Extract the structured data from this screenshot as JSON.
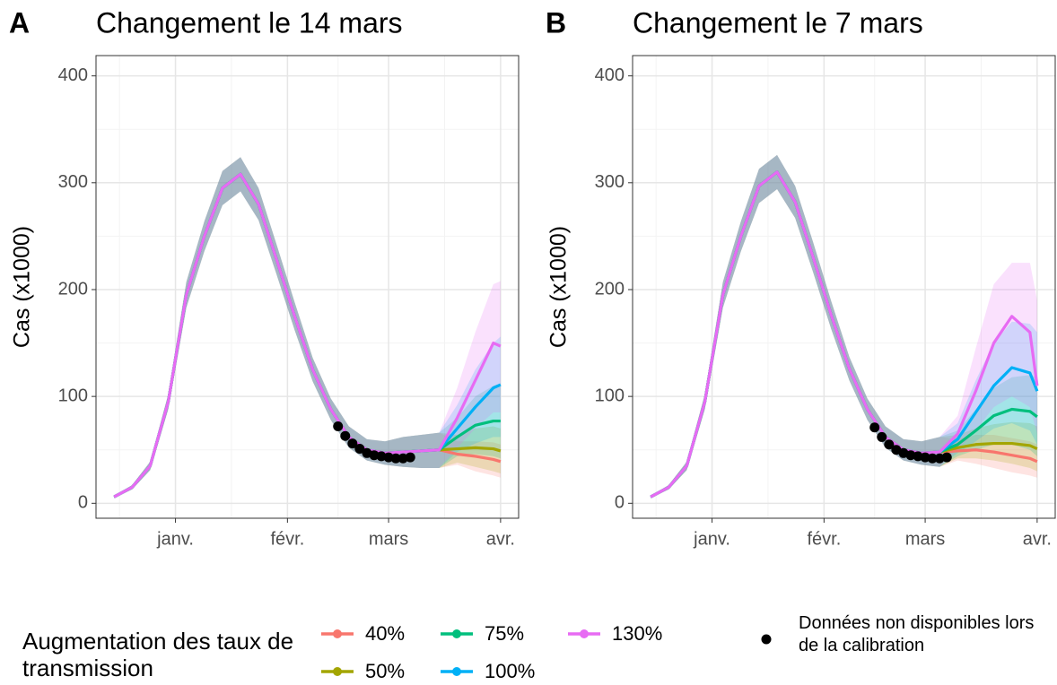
{
  "chart_data": [
    {
      "type": "line",
      "tag": "A",
      "title": "Changement le 14 mars",
      "y_label": "Cas (x1000)",
      "xlim": [
        -22,
        95
      ],
      "xticks": [
        {
          "value": 0,
          "label": "janv."
        },
        {
          "value": 31,
          "label": "févr."
        },
        {
          "value": 59,
          "label": "mars"
        },
        {
          "value": 90,
          "label": "avr."
        }
      ],
      "xminor": [
        -15.5,
        15.5,
        45,
        74.5
      ],
      "ylim": [
        -14,
        419
      ],
      "yticks": [
        0,
        100,
        200,
        300,
        400
      ],
      "yminor": [
        50,
        150,
        250,
        350
      ],
      "grid": true,
      "x": [
        -17,
        -12,
        -7,
        -2,
        3,
        8,
        13,
        18,
        23,
        28,
        33,
        38,
        43,
        48,
        53,
        58,
        63,
        68,
        73,
        78,
        83,
        88,
        90
      ],
      "series": [
        {
          "values": [
            6,
            15,
            35,
            95,
            195,
            250,
            295,
            308,
            280,
            228,
            175,
            125,
            88,
            62,
            50,
            47,
            48,
            49,
            50,
            46,
            44,
            41,
            39
          ],
          "lower": [
            5,
            13,
            31,
            88,
            183,
            236,
            279,
            292,
            265,
            214,
            162,
            114,
            78,
            52,
            40,
            36,
            34,
            33,
            33,
            36,
            30,
            26,
            24
          ],
          "upper": [
            7,
            17,
            39,
            102,
            207,
            264,
            311,
            324,
            295,
            242,
            188,
            136,
            98,
            72,
            60,
            58,
            62,
            64,
            66,
            58,
            58,
            57,
            55
          ]
        },
        {
          "values": [
            6,
            15,
            35,
            95,
            195,
            250,
            295,
            308,
            280,
            228,
            175,
            125,
            88,
            62,
            50,
            47,
            48,
            49,
            50,
            51,
            52,
            51,
            49
          ],
          "lower": [
            5,
            13,
            31,
            88,
            183,
            236,
            279,
            292,
            265,
            214,
            162,
            114,
            78,
            52,
            40,
            36,
            34,
            33,
            33,
            38,
            34,
            30,
            28
          ],
          "upper": [
            7,
            17,
            39,
            102,
            207,
            264,
            311,
            324,
            295,
            242,
            188,
            136,
            98,
            72,
            60,
            58,
            62,
            64,
            66,
            64,
            70,
            72,
            70
          ]
        },
        {
          "values": [
            6,
            15,
            35,
            95,
            195,
            250,
            295,
            308,
            280,
            228,
            175,
            125,
            88,
            62,
            50,
            47,
            48,
            49,
            50,
            62,
            73,
            77,
            77
          ],
          "lower": [
            5,
            13,
            31,
            88,
            183,
            236,
            279,
            292,
            265,
            214,
            162,
            114,
            78,
            52,
            40,
            36,
            34,
            33,
            33,
            44,
            46,
            44,
            42
          ],
          "upper": [
            7,
            17,
            39,
            102,
            207,
            264,
            311,
            324,
            295,
            242,
            188,
            136,
            98,
            72,
            60,
            58,
            62,
            64,
            66,
            80,
            100,
            110,
            112
          ]
        },
        {
          "values": [
            6,
            15,
            35,
            95,
            195,
            250,
            295,
            308,
            280,
            228,
            175,
            125,
            88,
            62,
            50,
            47,
            48,
            49,
            50,
            70,
            90,
            108,
            111
          ],
          "lower": [
            5,
            13,
            31,
            88,
            183,
            236,
            279,
            292,
            265,
            214,
            162,
            114,
            78,
            52,
            40,
            36,
            34,
            33,
            33,
            48,
            56,
            62,
            62
          ],
          "upper": [
            7,
            17,
            39,
            102,
            207,
            264,
            311,
            324,
            295,
            242,
            188,
            136,
            98,
            72,
            60,
            58,
            62,
            64,
            66,
            92,
            125,
            150,
            156
          ]
        },
        {
          "values": [
            6,
            15,
            35,
            95,
            195,
            250,
            295,
            308,
            280,
            228,
            175,
            125,
            88,
            62,
            50,
            47,
            48,
            49,
            50,
            80,
            115,
            150,
            147
          ],
          "lower": [
            5,
            13,
            31,
            88,
            183,
            236,
            279,
            292,
            265,
            214,
            162,
            114,
            78,
            52,
            40,
            36,
            34,
            33,
            33,
            52,
            70,
            85,
            85
          ],
          "upper": [
            7,
            17,
            39,
            102,
            207,
            264,
            311,
            324,
            295,
            242,
            188,
            136,
            98,
            72,
            60,
            58,
            62,
            64,
            66,
            108,
            160,
            205,
            208
          ]
        }
      ],
      "points": {
        "x": [
          45,
          47,
          49,
          51,
          53,
          55,
          57,
          59,
          61,
          63,
          65
        ],
        "values": [
          72,
          63,
          56,
          51,
          47,
          45,
          44,
          43,
          42,
          42,
          43
        ]
      }
    },
    {
      "type": "line",
      "tag": "B",
      "title": "Changement le 7 mars",
      "y_label": "Cas (x1000)",
      "xlim": [
        -22,
        95
      ],
      "xticks": [
        {
          "value": 0,
          "label": "janv."
        },
        {
          "value": 31,
          "label": "févr."
        },
        {
          "value": 59,
          "label": "mars"
        },
        {
          "value": 90,
          "label": "avr."
        }
      ],
      "xminor": [
        -15.5,
        15.5,
        45,
        74.5
      ],
      "ylim": [
        -14,
        419
      ],
      "yticks": [
        0,
        100,
        200,
        300,
        400
      ],
      "yminor": [
        50,
        150,
        250,
        350
      ],
      "grid": true,
      "x": [
        -17,
        -12,
        -7,
        -2,
        3,
        8,
        13,
        18,
        23,
        28,
        33,
        38,
        43,
        48,
        53,
        58,
        63,
        68,
        73,
        78,
        83,
        88,
        90
      ],
      "series": [
        {
          "values": [
            6,
            15,
            35,
            95,
            195,
            250,
            297,
            310,
            282,
            230,
            176,
            126,
            88,
            62,
            50,
            47,
            48,
            49,
            50,
            48,
            45,
            42,
            39
          ],
          "lower": [
            5,
            13,
            31,
            88,
            183,
            236,
            281,
            294,
            267,
            216,
            163,
            115,
            78,
            52,
            40,
            36,
            34,
            40,
            37,
            33,
            29,
            26,
            24
          ],
          "upper": [
            7,
            17,
            39,
            102,
            207,
            264,
            313,
            326,
            297,
            244,
            189,
            137,
            98,
            72,
            60,
            58,
            62,
            60,
            64,
            64,
            61,
            58,
            55
          ]
        },
        {
          "values": [
            6,
            15,
            35,
            95,
            195,
            250,
            297,
            310,
            282,
            230,
            176,
            126,
            88,
            62,
            50,
            47,
            48,
            52,
            55,
            56,
            56,
            54,
            51
          ],
          "lower": [
            5,
            13,
            31,
            88,
            183,
            236,
            281,
            294,
            267,
            216,
            163,
            115,
            78,
            52,
            40,
            36,
            34,
            42,
            42,
            40,
            37,
            33,
            30
          ],
          "upper": [
            7,
            17,
            39,
            102,
            207,
            264,
            313,
            326,
            297,
            244,
            189,
            137,
            98,
            72,
            60,
            58,
            62,
            64,
            70,
            74,
            76,
            75,
            72
          ]
        },
        {
          "values": [
            6,
            15,
            35,
            95,
            195,
            250,
            297,
            310,
            282,
            230,
            176,
            126,
            88,
            62,
            50,
            47,
            48,
            55,
            68,
            82,
            88,
            86,
            81
          ],
          "lower": [
            5,
            13,
            31,
            88,
            183,
            236,
            281,
            294,
            267,
            216,
            163,
            115,
            78,
            52,
            40,
            36,
            34,
            44,
            50,
            55,
            55,
            50,
            44
          ],
          "upper": [
            7,
            17,
            39,
            102,
            207,
            264,
            313,
            326,
            297,
            244,
            189,
            137,
            98,
            72,
            60,
            58,
            62,
            68,
            88,
            108,
            118,
            120,
            118
          ]
        },
        {
          "values": [
            6,
            15,
            35,
            95,
            195,
            250,
            297,
            310,
            282,
            230,
            176,
            126,
            88,
            62,
            50,
            47,
            48,
            60,
            85,
            110,
            127,
            122,
            105
          ],
          "lower": [
            5,
            13,
            31,
            88,
            183,
            236,
            281,
            294,
            267,
            216,
            163,
            115,
            78,
            52,
            40,
            36,
            34,
            47,
            58,
            70,
            75,
            68,
            55
          ],
          "upper": [
            7,
            17,
            39,
            102,
            207,
            264,
            313,
            326,
            297,
            244,
            189,
            137,
            98,
            72,
            60,
            58,
            62,
            75,
            115,
            150,
            170,
            168,
            160
          ]
        },
        {
          "values": [
            6,
            15,
            35,
            95,
            195,
            250,
            297,
            310,
            282,
            230,
            176,
            126,
            88,
            62,
            50,
            47,
            48,
            65,
            105,
            150,
            175,
            160,
            110
          ],
          "lower": [
            5,
            13,
            31,
            88,
            183,
            236,
            281,
            294,
            267,
            216,
            163,
            115,
            78,
            52,
            40,
            36,
            34,
            50,
            68,
            90,
            100,
            90,
            65
          ],
          "upper": [
            7,
            17,
            39,
            102,
            207,
            264,
            313,
            326,
            297,
            244,
            189,
            137,
            98,
            72,
            60,
            58,
            62,
            82,
            145,
            205,
            225,
            225,
            190
          ]
        }
      ],
      "points": {
        "x": [
          45,
          47,
          49,
          51,
          53,
          55,
          57,
          59,
          61,
          63,
          65
        ],
        "values": [
          71,
          62,
          55,
          50,
          47,
          45,
          44,
          43,
          42,
          42,
          43
        ]
      }
    }
  ],
  "legend": {
    "title": "Augmentation des taux de transmission",
    "series": [
      {
        "name": "40%",
        "color": "#F8766D"
      },
      {
        "name": "50%",
        "color": "#A3A500"
      },
      {
        "name": "75%",
        "color": "#00BF7D"
      },
      {
        "name": "100%",
        "color": "#00B0F6"
      },
      {
        "name": "130%",
        "color": "#E76BF3"
      }
    ],
    "points": {
      "label": "Données non disponibles lors de la calibration",
      "color": "#000000"
    }
  }
}
